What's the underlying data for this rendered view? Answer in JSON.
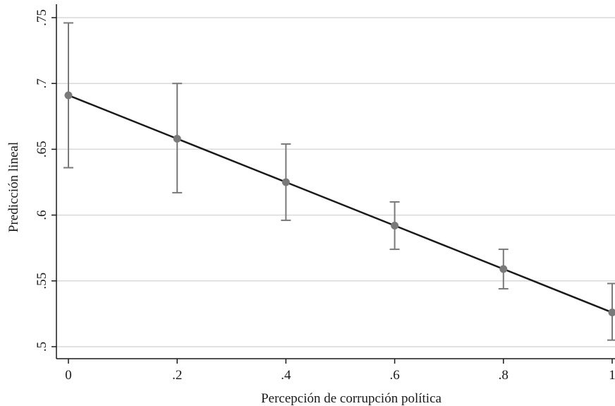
{
  "chart_data": {
    "type": "line",
    "title": "",
    "xlabel": "Percepción de corrupción política",
    "ylabel": "Predicción lineal",
    "xlim": [
      0,
      1
    ],
    "ylim": [
      0.5,
      0.75
    ],
    "x_ticks": [
      {
        "value": 0,
        "label": "0"
      },
      {
        "value": 0.2,
        "label": ".2"
      },
      {
        "value": 0.4,
        "label": ".4"
      },
      {
        "value": 0.6,
        "label": ".6"
      },
      {
        "value": 0.8,
        "label": ".8"
      },
      {
        "value": 1,
        "label": "1"
      }
    ],
    "y_ticks": [
      {
        "value": 0.5,
        "label": ".5"
      },
      {
        "value": 0.55,
        "label": ".55"
      },
      {
        "value": 0.6,
        "label": ".6"
      },
      {
        "value": 0.65,
        "label": ".65"
      },
      {
        "value": 0.7,
        "label": ".7"
      },
      {
        "value": 0.75,
        "label": ".75"
      }
    ],
    "grid": "horizontal",
    "series": [
      {
        "x": [
          0,
          0.2,
          0.4,
          0.6,
          0.8,
          1
        ],
        "y": [
          0.691,
          0.658,
          0.625,
          0.592,
          0.559,
          0.526
        ],
        "ci_low": [
          0.636,
          0.617,
          0.596,
          0.574,
          0.544,
          0.505
        ],
        "ci_high": [
          0.746,
          0.7,
          0.654,
          0.61,
          0.574,
          0.548
        ]
      }
    ],
    "colors": {
      "line": "#1a1a1a",
      "marker": "#7a7a7a",
      "errorbar": "#7a7a7a",
      "grid": "#d9d9d9",
      "axis": "#1a1a1a"
    }
  }
}
